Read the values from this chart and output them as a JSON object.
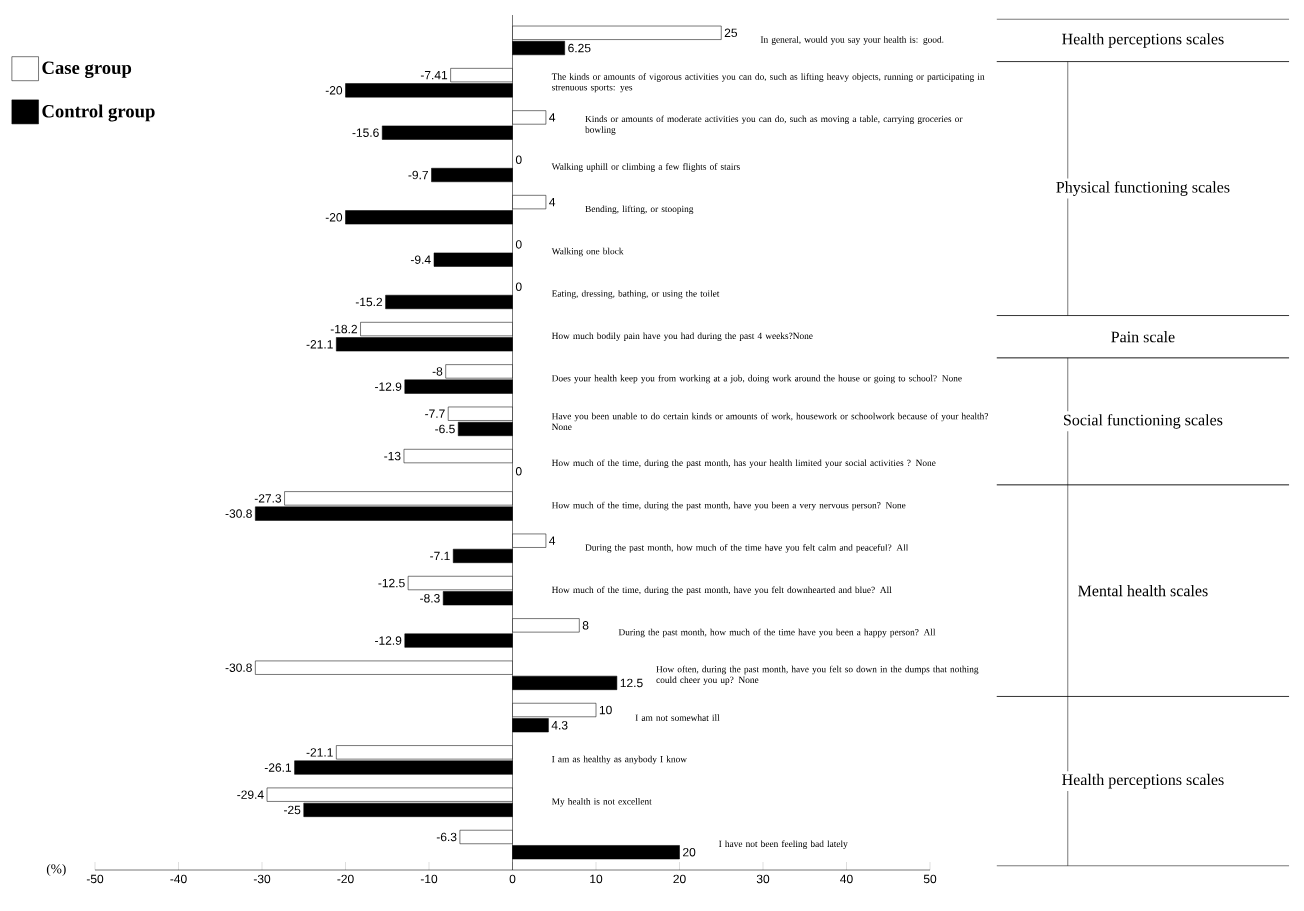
{
  "chart_data": {
    "type": "bar",
    "orientation": "horizontal",
    "xlabel": "(%)",
    "categories": [
      "In general, would you say your health is: good.",
      "The kinds or amounts of vigorous activities you can do, such as lifting heavy objects, running or participating in strenuous sports: yes",
      "Kinds or amounts of moderate activities you can do, such as moving a table, carrying groceries or bowling",
      "Walking uphill or climbing a few flights of stairs",
      "Bending, lifting, or stooping",
      "Walking one block",
      "Eating, dressing, bathing, or using the toilet",
      "How much bodily pain have you had during the past 4 weeks?None",
      "Does your health keep you from working at a job, doing work around the house or going to school? None",
      "Have you been unable to do certain kinds or amounts of work, housework or schoolwork because of your health? None",
      "How much of the time, during the past month, has your health limited your social activities ? None",
      "How much of the time, during the past month, have you been a very nervous person? None",
      "During the past month, how much of the time have you felt calm and peaceful? All",
      "How much of the time, during the past month, have you felt downhearted and blue? All",
      "During the past month, how much of the time have you been a happy person? All",
      "How often, during the past month, have you felt so down in the dumps that nothing could cheer you up? None",
      "I am not somewhat ill",
      "I am as healthy as anybody I know",
      "My health is not excellent",
      "I have not been feeling bad lately"
    ],
    "series": [
      {
        "name": "Case group",
        "color": "#ffffff",
        "values": [
          25,
          -7.41,
          4,
          0,
          4,
          0,
          0,
          -18.2,
          -8,
          -7.7,
          -13,
          -27.3,
          4,
          -12.5,
          8,
          -30.8,
          10,
          -21.1,
          -29.4,
          -6.3
        ]
      },
      {
        "name": "Control group",
        "color": "#000000",
        "values": [
          6.25,
          -20,
          -15.6,
          -9.7,
          -20,
          -9.4,
          -15.2,
          -21.1,
          -12.9,
          -6.5,
          0,
          -30.8,
          -7.1,
          -8.3,
          -12.9,
          12.5,
          4.3,
          -26.1,
          -25,
          20
        ]
      }
    ],
    "data_labels": true,
    "xlim": [
      -50,
      50
    ],
    "xticks": [
      -50,
      -40,
      -30,
      -20,
      -10,
      0,
      10,
      20,
      30,
      40,
      50
    ],
    "legend": "top left",
    "annotations": [
      "Health perceptions scales",
      "Physical functioning scales",
      "Pain scale",
      "Social functioning scales",
      "Mental health scales",
      "Health perceptions scales"
    ]
  }
}
